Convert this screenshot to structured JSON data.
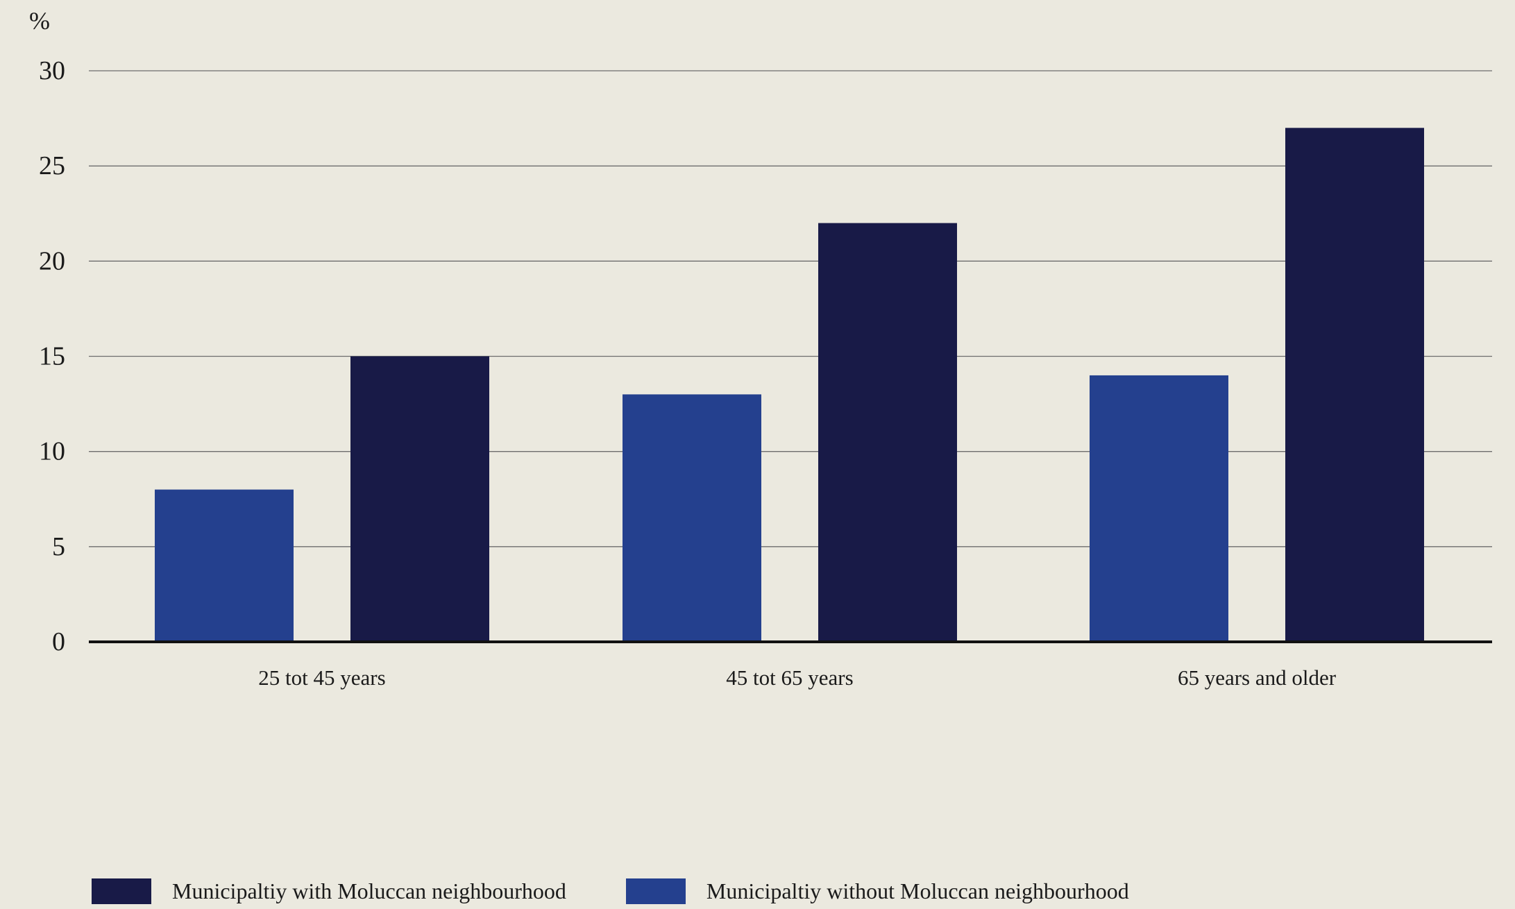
{
  "chart_data": {
    "type": "bar",
    "ylabel": "%",
    "ylim": [
      0,
      30
    ],
    "yticks": [
      0,
      5,
      10,
      15,
      20,
      25,
      30
    ],
    "grid": true,
    "legend_position": "bottom-left",
    "categories": [
      "25 tot 45 years",
      "45 tot 65 years",
      "65 years and older"
    ],
    "series": [
      {
        "name": "Municipaltiy without Moluccan neighbourhood",
        "color": "#24408e",
        "values": [
          8,
          13,
          14
        ]
      },
      {
        "name": "Municipaltiy with Moluccan neighbourhood",
        "color": "#181a47",
        "values": [
          15,
          22,
          27
        ]
      }
    ]
  },
  "legend": [
    {
      "label": "Municipaltiy with Moluccan neighbourhood",
      "color": "#181a47"
    },
    {
      "label": "Municipaltiy without Moluccan neighbourhood",
      "color": "#24408e"
    }
  ]
}
